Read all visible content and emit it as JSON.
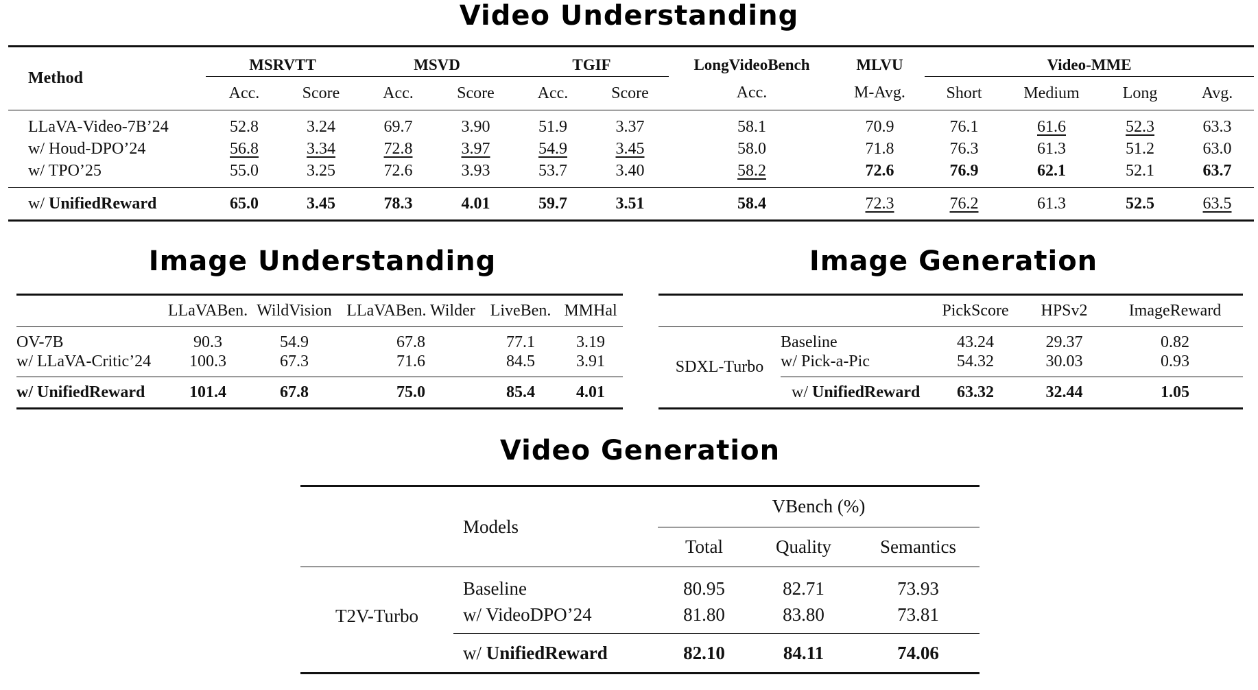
{
  "video_understanding": {
    "title": "Video Understanding",
    "method_header": "Method",
    "groups": [
      "MSRVTT",
      "MSVD",
      "TGIF",
      "LongVideoBench",
      "MLVU",
      "Video-MME"
    ],
    "subheaders": [
      "Acc.",
      "Score",
      "Acc.",
      "Score",
      "Acc.",
      "Score",
      "Acc.",
      "M-Avg.",
      "Short",
      "Medium",
      "Long",
      "Avg."
    ],
    "rows": [
      {
        "method": "LLaVA-Video-7B’24",
        "values": [
          "52.8",
          "3.24",
          "69.7",
          "3.90",
          "51.9",
          "3.37",
          "58.1",
          "70.9",
          "76.1",
          "61.6",
          "52.3",
          "63.3"
        ]
      },
      {
        "method": "w/ Houd-DPO’24",
        "values": [
          "56.8",
          "3.34",
          "72.8",
          "3.97",
          "54.9",
          "3.45",
          "58.0",
          "71.8",
          "76.3",
          "61.3",
          "51.2",
          "63.0"
        ]
      },
      {
        "method": "w/ TPO’25",
        "values": [
          "55.0",
          "3.25",
          "72.6",
          "3.93",
          "53.7",
          "3.40",
          "58.2",
          "72.6",
          "76.9",
          "62.1",
          "52.1",
          "63.7"
        ]
      }
    ],
    "final": {
      "prefix": "w/ ",
      "name": "UnifiedReward",
      "values": [
        "65.0",
        "3.45",
        "78.3",
        "4.01",
        "59.7",
        "3.51",
        "58.4",
        "72.3",
        "76.2",
        "61.3",
        "52.5",
        "63.5"
      ]
    }
  },
  "image_understanding": {
    "title": "Image Understanding",
    "headers": [
      "LLaVABen.",
      "WildVision",
      "LLaVABen. Wilder",
      "LiveBen.",
      "MMHal"
    ],
    "rows": [
      {
        "model": "OV-7B",
        "values": [
          "90.3",
          "54.9",
          "67.8",
          "77.1",
          "3.19"
        ]
      },
      {
        "model": "w/ LLaVA-Critic’24",
        "values": [
          "100.3",
          "67.3",
          "71.6",
          "84.5",
          "3.91"
        ]
      }
    ],
    "final": {
      "model": "w/ UnifiedReward",
      "values": [
        "101.4",
        "67.8",
        "75.0",
        "85.4",
        "4.01"
      ]
    }
  },
  "image_generation": {
    "title": "Image Generation",
    "model": "SDXL-Turbo",
    "headers": [
      "PickScore",
      "HPSv2",
      "ImageReward"
    ],
    "rows": [
      {
        "method": "Baseline",
        "values": [
          "43.24",
          "29.37",
          "0.82"
        ]
      },
      {
        "method": "w/ Pick-a-Pic",
        "values": [
          "54.32",
          "30.03",
          "0.93"
        ]
      }
    ],
    "final": {
      "prefix": "w/ ",
      "name": "UnifiedReward",
      "values": [
        "63.32",
        "32.44",
        "1.05"
      ]
    }
  },
  "video_generation": {
    "title": "Video Generation",
    "models_header": "Models",
    "group_header": "VBench (%)",
    "headers": [
      "Total",
      "Quality",
      "Semantics"
    ],
    "model": "T2V-Turbo",
    "rows": [
      {
        "method": "Baseline",
        "values": [
          "80.95",
          "82.71",
          "73.93"
        ]
      },
      {
        "method": "w/ VideoDPO’24",
        "values": [
          "81.80",
          "83.80",
          "73.81"
        ]
      }
    ],
    "final": {
      "prefix": "w/ ",
      "name": "UnifiedReward",
      "values": [
        "82.10",
        "84.11",
        "74.06"
      ]
    }
  }
}
